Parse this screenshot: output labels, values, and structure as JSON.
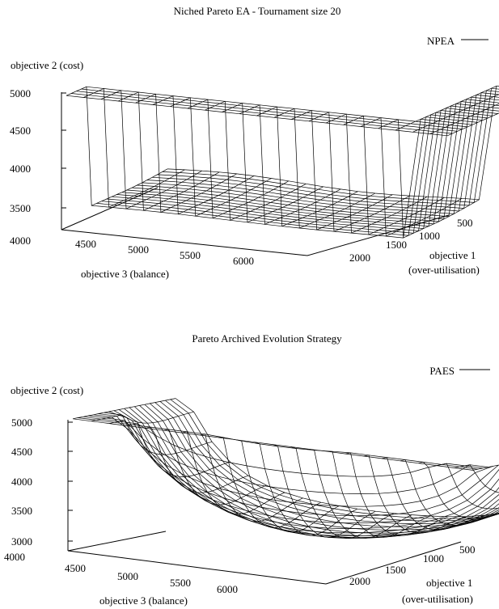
{
  "chart_data": [
    {
      "type": "surface",
      "title": "Niched Pareto EA - Tournament size 20",
      "legend": "NPEA",
      "legend_position": "top-right",
      "axes": {
        "z_label": "objective 2 (cost)",
        "x_label": "objective 3 (balance)",
        "y_label": [
          "objective 1",
          "(over-utilisation)"
        ],
        "z_ticks": [
          "5000",
          "4500",
          "4000",
          "3500"
        ],
        "x_ticks": [
          "4000",
          "4500",
          "5000",
          "5500",
          "6000"
        ],
        "y_ticks": [
          "500",
          "1000",
          "1500",
          "2000"
        ],
        "x_range": [
          4000,
          6300
        ],
        "y_range": [
          300,
          2300
        ],
        "z_range": [
          3350,
          5000
        ]
      },
      "grid": false
    },
    {
      "type": "surface",
      "title": "Pareto Archived Evolution Strategy",
      "legend": "PAES",
      "legend_position": "top-right",
      "axes": {
        "z_label": "objective 2 (cost)",
        "x_label": "objective 3 (balance)",
        "y_label": [
          "objective 1",
          "(over-utilisation)"
        ],
        "z_ticks": [
          "5000",
          "4500",
          "4000",
          "3500",
          "3000"
        ],
        "x_ticks": [
          "4000",
          "4500",
          "5000",
          "5500",
          "6000"
        ],
        "y_ticks": [
          "500",
          "1000",
          "1500",
          "2000"
        ],
        "x_range": [
          4000,
          6300
        ],
        "y_range": [
          300,
          2300
        ],
        "z_range": [
          2850,
          5000
        ]
      },
      "grid": false
    }
  ]
}
